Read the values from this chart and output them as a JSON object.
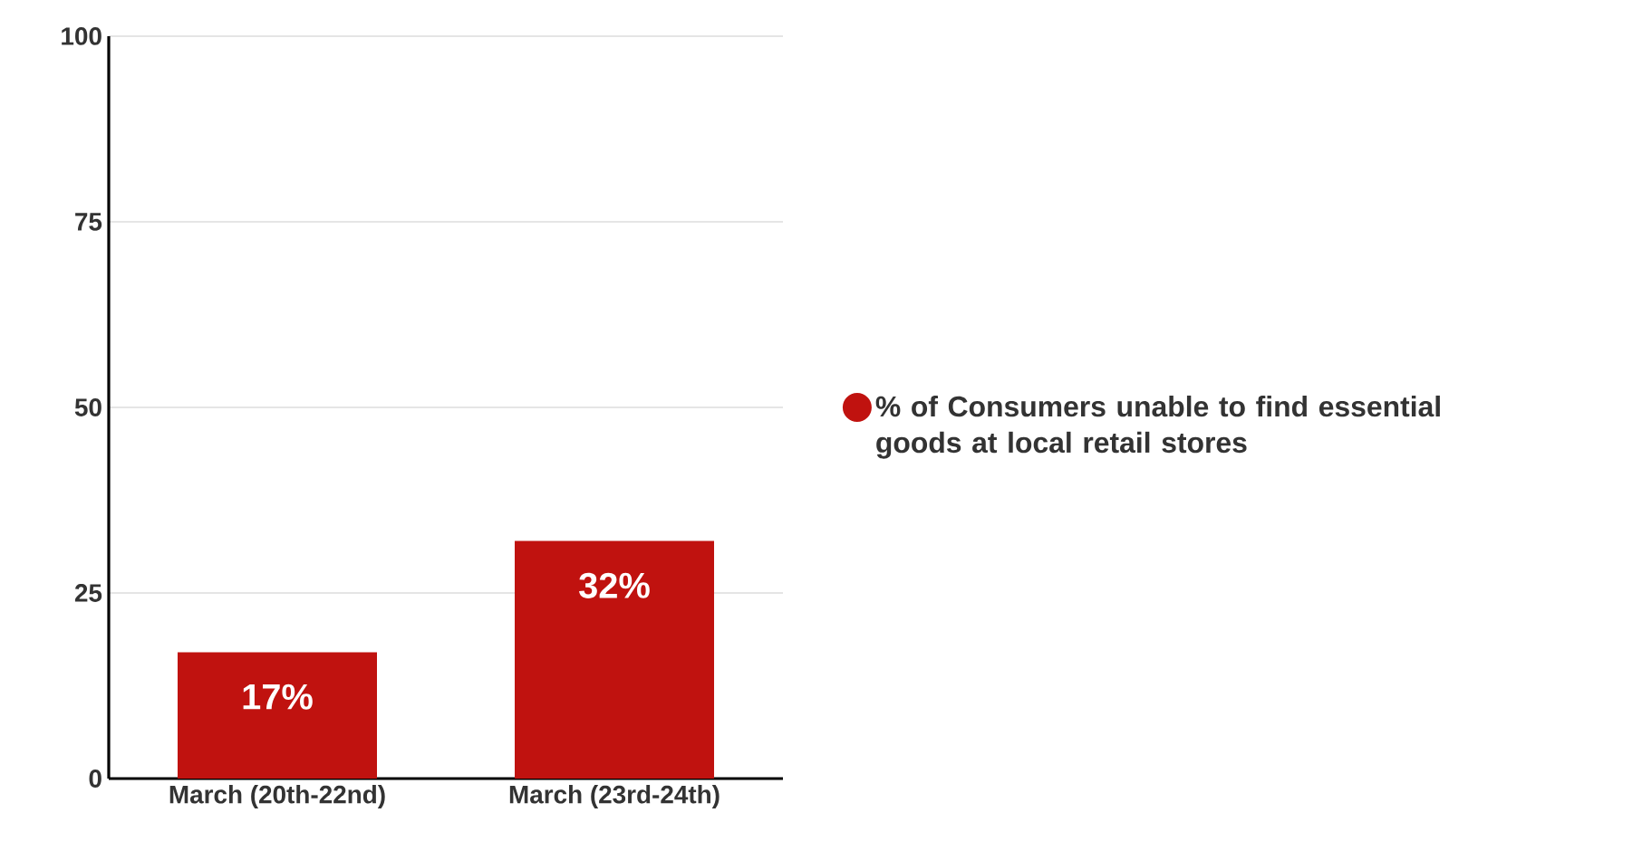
{
  "chart_data": {
    "type": "bar",
    "categories": [
      "March (20th-22nd)",
      "March (23rd-24th)"
    ],
    "series": [
      {
        "name": "% of Consumers unable to find essential goods at local retail stores",
        "color": "#c0120f",
        "values": [
          17,
          32
        ]
      }
    ],
    "value_labels": [
      "17%",
      "32%"
    ],
    "ylim": [
      0,
      100
    ],
    "yticks": [
      0,
      25,
      50,
      75,
      100
    ],
    "grid": "y",
    "legend": "right"
  }
}
